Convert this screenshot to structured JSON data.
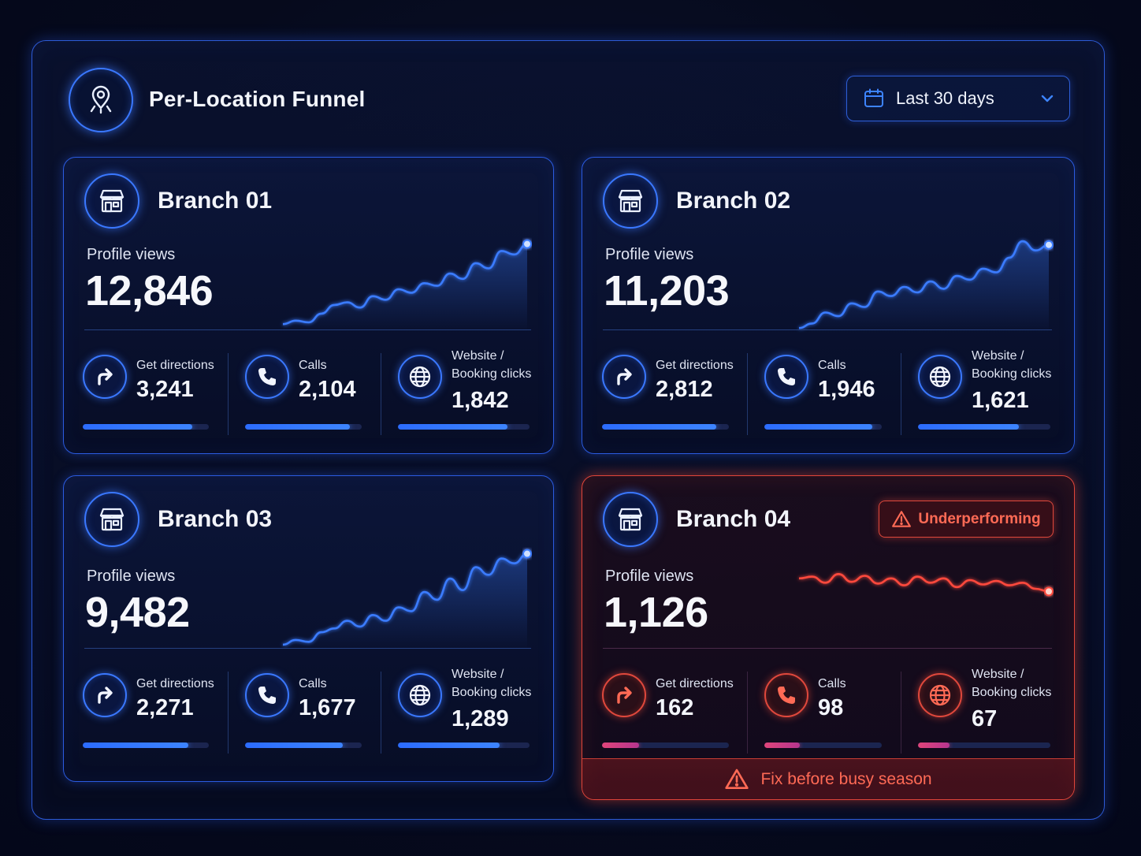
{
  "header": {
    "title": "Per-Location Funnel",
    "logo_icon": "location-pin-icon",
    "date_range": {
      "value": "Last 30 days",
      "icon": "calendar-icon",
      "caret": "chevron-down-icon"
    }
  },
  "colors": {
    "accent": "#2c6cff",
    "alert": "#e0483c",
    "alert_text": "#ff6a55"
  },
  "branches": [
    {
      "name": "Branch 01",
      "profile_views_label": "Profile views",
      "profile_views": "12,846",
      "trend": [
        0.08,
        0.12,
        0.1,
        0.2,
        0.3,
        0.33,
        0.27,
        0.4,
        0.36,
        0.48,
        0.44,
        0.55,
        0.52,
        0.66,
        0.6,
        0.78,
        0.72,
        0.92,
        0.88,
        1.0
      ],
      "metrics": [
        {
          "label": "Get directions",
          "value": "3,241",
          "icon": "arrow-turn-right-icon",
          "fill": 0.87
        },
        {
          "label": "Calls",
          "value": "2,104",
          "icon": "phone-icon",
          "fill": 0.9
        },
        {
          "label": "Website /\nBooking clicks",
          "value": "1,842",
          "icon": "globe-icon",
          "fill": 0.83
        }
      ]
    },
    {
      "name": "Branch 02",
      "profile_views_label": "Profile views",
      "profile_views": "11,203",
      "trend": [
        0.05,
        0.1,
        0.22,
        0.18,
        0.32,
        0.28,
        0.45,
        0.4,
        0.5,
        0.44,
        0.56,
        0.48,
        0.62,
        0.58,
        0.7,
        0.66,
        0.82,
        1.0,
        0.9,
        0.96
      ],
      "metrics": [
        {
          "label": "Get directions",
          "value": "2,812",
          "icon": "arrow-turn-right-icon",
          "fill": 0.9
        },
        {
          "label": "Calls",
          "value": "1,946",
          "icon": "phone-icon",
          "fill": 0.92
        },
        {
          "label": "Website /\nBooking clicks",
          "value": "1,621",
          "icon": "globe-icon",
          "fill": 0.76
        }
      ]
    },
    {
      "name": "Branch 03",
      "profile_views_label": "Profile views",
      "profile_views": "9,482",
      "trend": [
        0.05,
        0.1,
        0.08,
        0.18,
        0.22,
        0.3,
        0.24,
        0.36,
        0.3,
        0.44,
        0.4,
        0.6,
        0.52,
        0.74,
        0.62,
        0.86,
        0.78,
        0.95,
        0.9,
        1.0
      ],
      "metrics": [
        {
          "label": "Get directions",
          "value": "2,271",
          "icon": "arrow-turn-right-icon",
          "fill": 0.84
        },
        {
          "label": "Calls",
          "value": "1,677",
          "icon": "phone-icon",
          "fill": 0.84
        },
        {
          "label": "Website /\nBooking clicks",
          "value": "1,289",
          "icon": "globe-icon",
          "fill": 0.77
        }
      ]
    },
    {
      "name": "Branch 04",
      "profile_views_label": "Profile views",
      "profile_views": "1,126",
      "alert": true,
      "badge": "Underperforming",
      "footer_warning": "Fix before busy season",
      "trend": [
        0.5,
        0.52,
        0.45,
        0.55,
        0.46,
        0.53,
        0.44,
        0.5,
        0.42,
        0.52,
        0.45,
        0.5,
        0.4,
        0.48,
        0.43,
        0.47,
        0.42,
        0.45,
        0.38,
        0.35
      ],
      "metrics": [
        {
          "label": "Get directions",
          "value": "162",
          "icon": "arrow-turn-right-icon",
          "fill": 0.29
        },
        {
          "label": "Calls",
          "value": "98",
          "icon": "phone-icon",
          "fill": 0.3
        },
        {
          "label": "Website /\nBooking clicks",
          "value": "67",
          "icon": "globe-icon",
          "fill": 0.24
        }
      ]
    }
  ]
}
